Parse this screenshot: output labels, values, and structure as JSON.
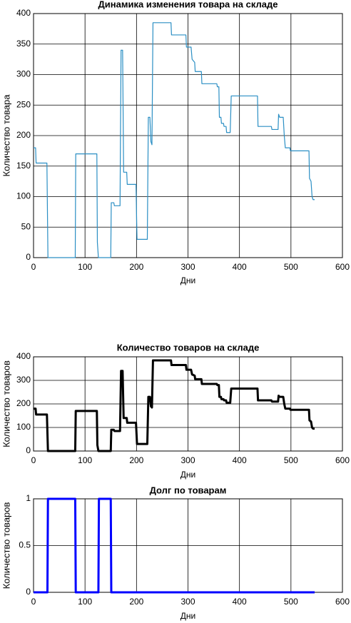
{
  "chart_data": [
    {
      "type": "line",
      "title": "Динамика изменения товара на складе",
      "xlabel": "Дни",
      "ylabel": "Количество товара",
      "xlim": [
        0,
        600
      ],
      "xticks": [
        0,
        100,
        200,
        300,
        400,
        500,
        600
      ],
      "ylim": [
        0,
        400
      ],
      "yticks": [
        0,
        50,
        100,
        150,
        200,
        250,
        300,
        350,
        400
      ],
      "grid": true,
      "series": [
        {
          "color": "#2b8fc4",
          "x": [
            0,
            4,
            5,
            26,
            28,
            81,
            82,
            123,
            124,
            126,
            150,
            151,
            156,
            157,
            168,
            170,
            173,
            175,
            181,
            182,
            199,
            201,
            221,
            223,
            226,
            228,
            230,
            232,
            267,
            268,
            296,
            297,
            306,
            308,
            313,
            314,
            326,
            327,
            356,
            357,
            360,
            361,
            364,
            365,
            369,
            370,
            374,
            375,
            382,
            384,
            435,
            436,
            462,
            463,
            475,
            476,
            478,
            485,
            487,
            489,
            498,
            499,
            535,
            536,
            539,
            541,
            543,
            546
          ],
          "values": [
            180,
            180,
            155,
            155,
            0,
            0,
            170,
            170,
            25,
            0,
            0,
            90,
            90,
            85,
            85,
            340,
            340,
            140,
            140,
            120,
            120,
            30,
            30,
            230,
            230,
            190,
            185,
            385,
            385,
            365,
            365,
            345,
            345,
            325,
            320,
            305,
            305,
            285,
            285,
            280,
            280,
            230,
            230,
            220,
            220,
            215,
            215,
            205,
            205,
            265,
            265,
            215,
            215,
            210,
            210,
            235,
            230,
            230,
            200,
            180,
            180,
            175,
            175,
            130,
            125,
            100,
            95,
            95
          ]
        }
      ]
    },
    {
      "type": "line",
      "title": "Количество товаров на складе",
      "xlabel": "Дни",
      "ylabel": "Количество товаров",
      "xlim": [
        0,
        600
      ],
      "xticks": [
        0,
        100,
        200,
        300,
        400,
        500,
        600
      ],
      "ylim": [
        0,
        400
      ],
      "yticks": [
        0,
        100,
        200,
        300,
        400
      ],
      "grid": true,
      "series": [
        {
          "color": "#000000",
          "x": [
            0,
            4,
            5,
            26,
            28,
            81,
            82,
            123,
            124,
            126,
            150,
            151,
            156,
            157,
            168,
            170,
            173,
            175,
            181,
            182,
            199,
            201,
            221,
            223,
            226,
            228,
            230,
            232,
            267,
            268,
            296,
            297,
            306,
            308,
            313,
            314,
            326,
            327,
            356,
            357,
            360,
            361,
            364,
            365,
            369,
            370,
            374,
            375,
            382,
            384,
            435,
            436,
            462,
            463,
            475,
            476,
            478,
            485,
            487,
            489,
            498,
            499,
            535,
            536,
            539,
            541,
            543,
            546
          ],
          "values": [
            180,
            180,
            155,
            155,
            0,
            0,
            170,
            170,
            25,
            0,
            0,
            90,
            90,
            85,
            85,
            340,
            340,
            140,
            140,
            120,
            120,
            30,
            30,
            230,
            230,
            190,
            185,
            385,
            385,
            365,
            365,
            345,
            345,
            325,
            320,
            305,
            305,
            285,
            285,
            280,
            280,
            230,
            230,
            220,
            220,
            215,
            215,
            205,
            205,
            265,
            265,
            215,
            215,
            210,
            210,
            235,
            230,
            230,
            200,
            180,
            180,
            175,
            175,
            130,
            125,
            100,
            95,
            95
          ]
        }
      ]
    },
    {
      "type": "line",
      "title": "Долг по товарам",
      "xlabel": "Дни",
      "ylabel": "Количество товаров",
      "xlim": [
        0,
        600
      ],
      "xticks": [
        0,
        100,
        200,
        300,
        400,
        500,
        600
      ],
      "ylim": [
        0,
        1
      ],
      "yticks": [
        0,
        0.5,
        1
      ],
      "grid": true,
      "series": [
        {
          "color": "#0000ff",
          "x": [
            0,
            27,
            28,
            81,
            82,
            126,
            127,
            150,
            151,
            546
          ],
          "values": [
            0,
            0,
            1,
            1,
            0,
            0,
            1,
            1,
            0,
            0
          ]
        }
      ]
    }
  ]
}
